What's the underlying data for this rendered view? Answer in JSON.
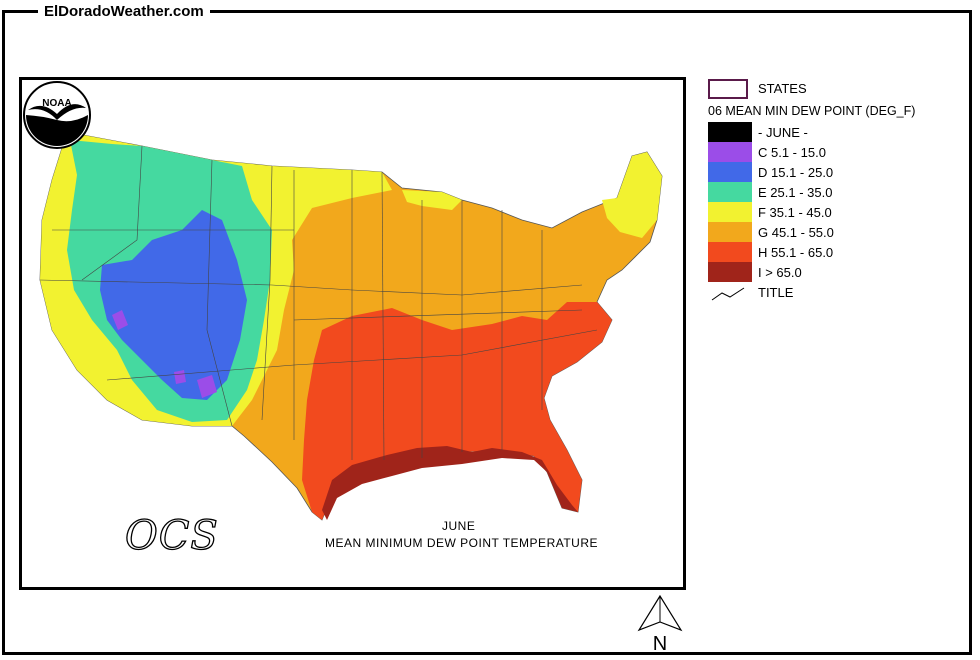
{
  "site_title": "ElDoradoWeather.com",
  "legend": {
    "states_label": "STATES",
    "field_title": "06 MEAN MIN DEW POINT (DEG_F)",
    "items": [
      {
        "label": "- JUNE -",
        "color": "#000000"
      },
      {
        "label": "C 5.1 - 15.0",
        "color": "#9b4de8"
      },
      {
        "label": "D 15.1 - 25.0",
        "color": "#4169e8"
      },
      {
        "label": "E 25.1 - 35.0",
        "color": "#45d9a0"
      },
      {
        "label": "F 35.1 - 45.0",
        "color": "#f2f230"
      },
      {
        "label": "G 45.1 - 55.0",
        "color": "#f2a81c"
      },
      {
        "label": "H 55.1 - 65.0",
        "color": "#f24a1e"
      },
      {
        "label": "I > 65.0",
        "color": "#a0241a"
      }
    ],
    "title_label": "TITLE"
  },
  "caption": {
    "month": "JUNE",
    "subtitle": "MEAN MINIMUM DEW POINT TEMPERATURE"
  },
  "logos": {
    "noaa_text": "NOAA",
    "ocs_text": "OCS"
  },
  "north_label": "N"
}
